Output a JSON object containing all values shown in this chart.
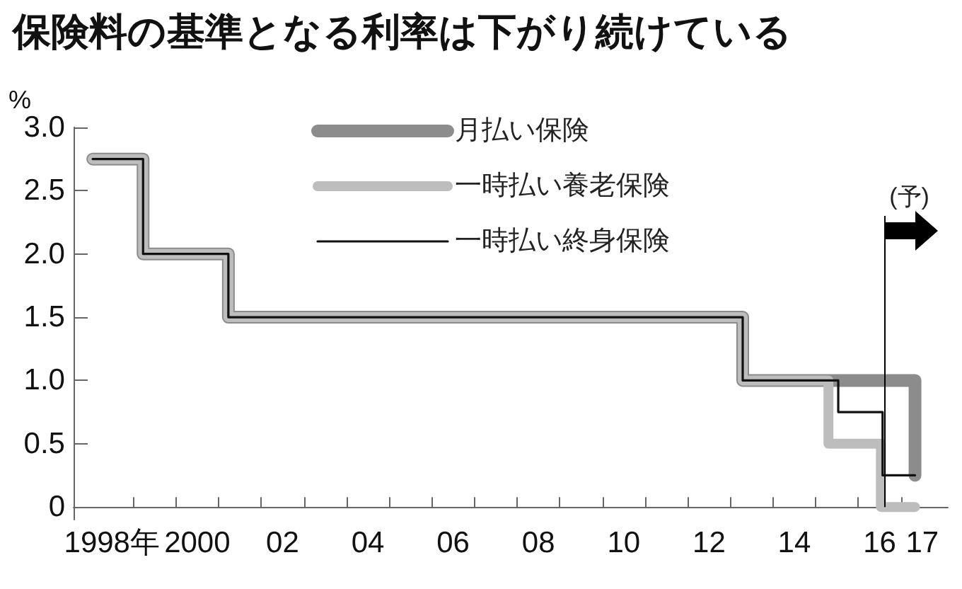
{
  "chart_data": {
    "type": "step",
    "title": "保険料の基準となる利率は下がり続けている",
    "ylabel": "%",
    "series": [
      {
        "name": "月払い保険",
        "color": "#8c8c8c",
        "x": [
          1997.55,
          1998.73,
          2000.73,
          2012.79,
          2016.83
        ],
        "values": [
          2.75,
          2,
          1.5,
          1,
          0.25
        ]
      },
      {
        "name": "一時払い養老保険",
        "color": "#bdbdbd",
        "x": [
          1997.55,
          1998.73,
          2000.73,
          2012.79,
          2014.8,
          2016.03,
          2016.83
        ],
        "values": [
          2.75,
          2,
          1.5,
          1,
          0.5,
          0,
          0
        ]
      },
      {
        "name": "一時払い終身保険",
        "color": "#111111",
        "x": [
          1997.55,
          1998.73,
          2000.73,
          2012.79,
          2015.03,
          2016.07,
          2016.83
        ],
        "values": [
          2.75,
          2,
          1.5,
          1,
          0.75,
          0.25,
          0.25
        ]
      }
    ],
    "xlim": [
      1997.1,
      2017.6
    ],
    "xticks": [
      {
        "value": 1998,
        "label": "1998年"
      },
      {
        "value": 1998.5,
        "label": null
      },
      {
        "value": 1999.5,
        "label": null
      },
      {
        "value": 2000,
        "label": "2000"
      },
      {
        "value": 2000.5,
        "label": null
      },
      {
        "value": 2001.5,
        "label": null
      },
      {
        "value": 2002,
        "label": "02"
      },
      {
        "value": 2002.5,
        "label": null
      },
      {
        "value": 2003.5,
        "label": null
      },
      {
        "value": 2004,
        "label": "04"
      },
      {
        "value": 2004.5,
        "label": null
      },
      {
        "value": 2005.5,
        "label": null
      },
      {
        "value": 2006,
        "label": "06"
      },
      {
        "value": 2006.5,
        "label": null
      },
      {
        "value": 2007.5,
        "label": null
      },
      {
        "value": 2008,
        "label": "08"
      },
      {
        "value": 2008.5,
        "label": null
      },
      {
        "value": 2009.5,
        "label": null
      },
      {
        "value": 2010,
        "label": "10"
      },
      {
        "value": 2010.5,
        "label": null
      },
      {
        "value": 2011.5,
        "label": null
      },
      {
        "value": 2012,
        "label": "12"
      },
      {
        "value": 2012.5,
        "label": null
      },
      {
        "value": 2013.5,
        "label": null
      },
      {
        "value": 2014,
        "label": "14"
      },
      {
        "value": 2014.5,
        "label": null
      },
      {
        "value": 2015.5,
        "label": null
      },
      {
        "value": 2016,
        "label": "16"
      },
      {
        "value": 2016.5,
        "label": null
      },
      {
        "value": 2017,
        "label": "17"
      }
    ],
    "ylim": [
      -0.1,
      3
    ],
    "yticks": [
      0,
      {
        "value": 0.5,
        "label": "0.5"
      },
      {
        "value": 1,
        "label": "1.0"
      },
      {
        "value": 1.5,
        "label": "1.5"
      },
      {
        "value": 2,
        "label": "2.0"
      },
      {
        "value": 2.5,
        "label": "2.5"
      },
      {
        "value": 3,
        "label": "3.0"
      }
    ],
    "ref_lines": [
      {
        "axis": "x",
        "value": 2016.1,
        "label": "(予)",
        "color": "#000000"
      }
    ],
    "legend": "top",
    "grid": false,
    "marker": "none"
  }
}
